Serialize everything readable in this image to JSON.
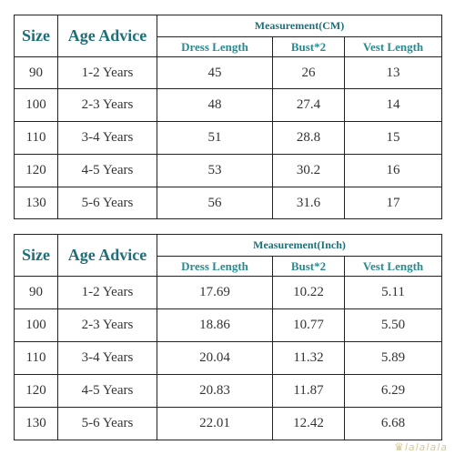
{
  "header": {
    "size_label": "Size",
    "age_label": "Age Advice",
    "dress_length": "Dress Length",
    "bust": "Bust*2",
    "vest_length": "Vest Length"
  },
  "tables": [
    {
      "unit_title": "Measurement(CM)",
      "rows": [
        {
          "size": "90",
          "age": "1-2 Years",
          "dress": "45",
          "bust": "26",
          "vest": "13"
        },
        {
          "size": "100",
          "age": "2-3 Years",
          "dress": "48",
          "bust": "27.4",
          "vest": "14"
        },
        {
          "size": "110",
          "age": "3-4 Years",
          "dress": "51",
          "bust": "28.8",
          "vest": "15"
        },
        {
          "size": "120",
          "age": "4-5 Years",
          "dress": "53",
          "bust": "30.2",
          "vest": "16"
        },
        {
          "size": "130",
          "age": "5-6 Years",
          "dress": "56",
          "bust": "31.6",
          "vest": "17"
        }
      ]
    },
    {
      "unit_title": "Measurement(Inch)",
      "rows": [
        {
          "size": "90",
          "age": "1-2 Years",
          "dress": "17.69",
          "bust": "10.22",
          "vest": "5.11"
        },
        {
          "size": "100",
          "age": "2-3 Years",
          "dress": "18.86",
          "bust": "10.77",
          "vest": "5.50"
        },
        {
          "size": "110",
          "age": "3-4 Years",
          "dress": "20.04",
          "bust": "11.32",
          "vest": "5.89"
        },
        {
          "size": "120",
          "age": "4-5 Years",
          "dress": "20.83",
          "bust": "11.87",
          "vest": "6.29"
        },
        {
          "size": "130",
          "age": "5-6 Years",
          "dress": "22.01",
          "bust": "12.42",
          "vest": "6.68"
        }
      ]
    }
  ],
  "watermark": "lalalala"
}
